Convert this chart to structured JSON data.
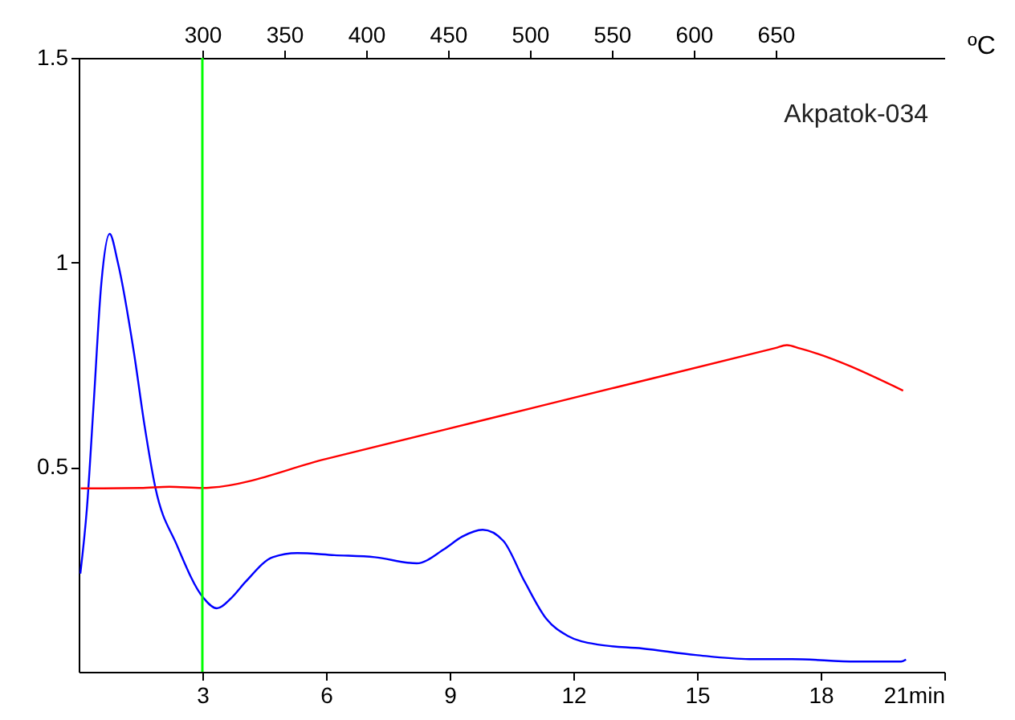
{
  "chart_data": {
    "type": "line",
    "annotations": [
      "Akpatok-034"
    ],
    "x2label": "ºC",
    "xlim": [
      0,
      21
    ],
    "xticks": [
      3,
      6,
      9,
      12,
      15,
      18,
      {
        "value": 21,
        "label": "21min"
      }
    ],
    "x2lim": [
      224.5,
      753
    ],
    "x2ticks": [
      300,
      350,
      400,
      450,
      500,
      550,
      600,
      650
    ],
    "ylim": [
      0,
      1.5
    ],
    "yticks": [
      0.5,
      1,
      1.5
    ],
    "grid": false,
    "series": [
      {
        "color": "#0000ff",
        "x": [
          0.04,
          0.2,
          0.36,
          0.55,
          0.75,
          0.95,
          1.34,
          1.6,
          1.86,
          2.38,
          3.03,
          3.35,
          3.7,
          4.05,
          4.71,
          5.3,
          6.2,
          7.18,
          8.2,
          8.87,
          9.3,
          9.8,
          10.3,
          10.82,
          11.34,
          11.86,
          12.63,
          13.67,
          14.97,
          16.27,
          17.3,
          18.86,
          19.95,
          20.07
        ],
        "values": [
          0.24,
          0.4,
          0.65,
          0.95,
          1.07,
          1.0,
          0.78,
          0.6,
          0.45,
          0.31,
          0.18,
          0.155,
          0.18,
          0.22,
          0.28,
          0.29,
          0.285,
          0.28,
          0.265,
          0.3,
          0.33,
          0.347,
          0.32,
          0.22,
          0.13,
          0.088,
          0.066,
          0.057,
          0.041,
          0.031,
          0.031,
          0.025,
          0.025,
          0.03
        ]
      },
      {
        "color": "#ff0000",
        "x": [
          0.05,
          1.5,
          2.2,
          3.0,
          3.2,
          6.0,
          9.78,
          13.0,
          16.9,
          17.18,
          17.5,
          20.0
        ],
        "values": [
          0.448,
          0.449,
          0.452,
          0.449,
          0.45,
          0.52,
          0.614,
          0.694,
          0.791,
          0.798,
          0.79,
          0.687
        ]
      }
    ],
    "ref_lines": [
      {
        "axis": "x",
        "value": 3,
        "color": "#00ff00"
      }
    ]
  }
}
